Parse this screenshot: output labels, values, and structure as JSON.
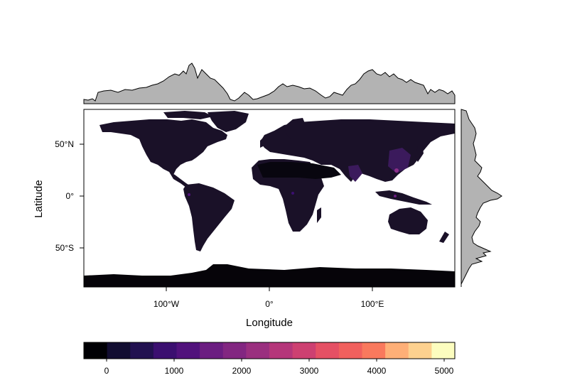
{
  "map": {
    "xlabel": "Longitude",
    "ylabel": "Latitude",
    "x_ticks": [
      "100°W",
      "0°",
      "100°E"
    ],
    "y_ticks": [
      "50°N",
      "0°",
      "50°S"
    ],
    "land_color": "#1a1128",
    "antarctica_color": "#060409",
    "ocean_color": "#ffffff",
    "marginal_fill": "#b3b3b3"
  },
  "legend": {
    "tick_labels": [
      "0",
      "1000",
      "2000",
      "3000",
      "4000",
      "5000"
    ],
    "colors": [
      "#000004",
      "#120d31",
      "#221150",
      "#3b0f70",
      "#51127c",
      "#6b1d81",
      "#822681",
      "#9a2f7f",
      "#b5367a",
      "#cd4071",
      "#e55064",
      "#f1605d",
      "#f9795d",
      "#feaf77",
      "#fdd18f",
      "#fcfdbf"
    ]
  }
}
